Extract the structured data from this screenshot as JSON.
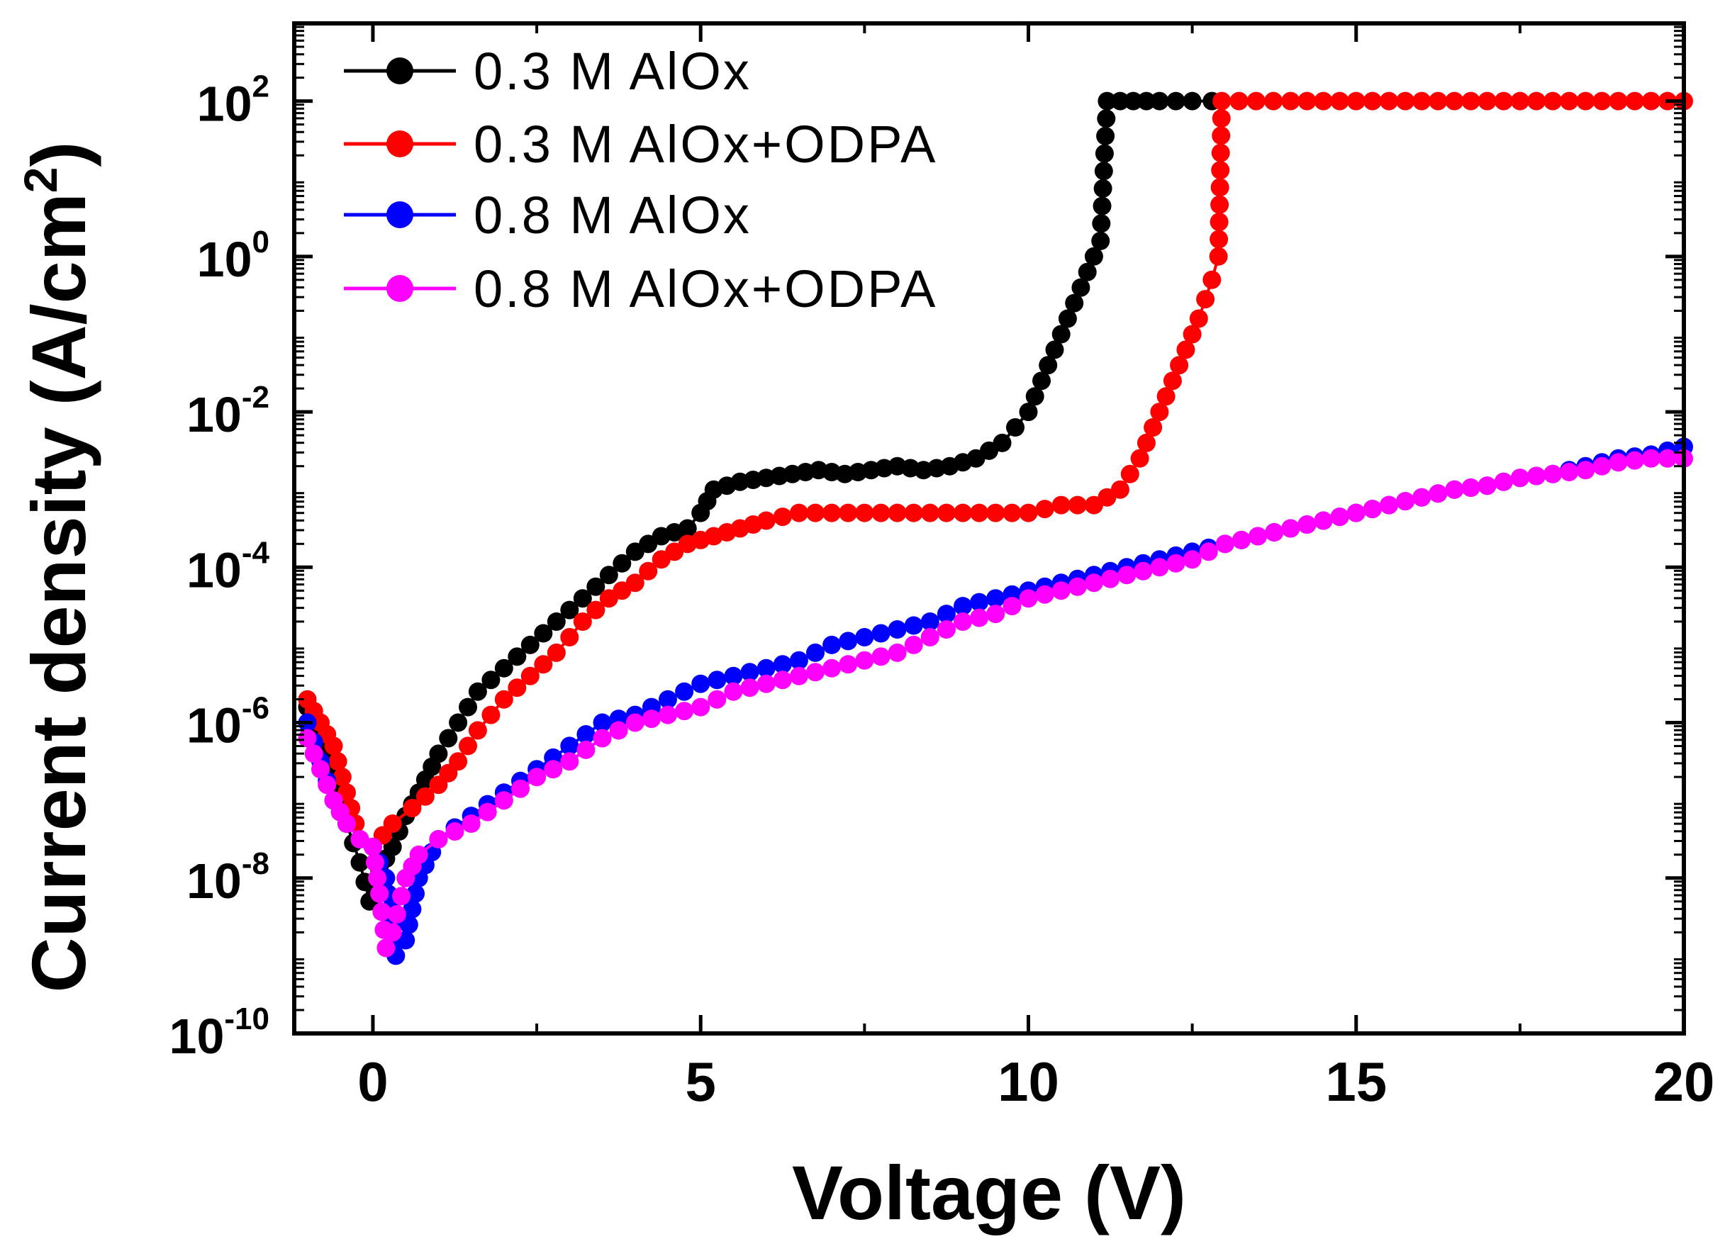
{
  "chart_data": {
    "type": "line",
    "title": "",
    "xlabel": "Voltage (V)",
    "ylabel_main": "Current density (A/cm",
    "ylabel_sup": "2",
    "ylabel_close": ")",
    "xlim": [
      -1.2,
      20
    ],
    "ylim_log10": [
      -10,
      3
    ],
    "y_scale": "log",
    "x_ticks": [
      {
        "value": 0,
        "label": "0"
      },
      {
        "value": 5,
        "label": "5"
      },
      {
        "value": 10,
        "label": "10"
      },
      {
        "value": 15,
        "label": "15"
      },
      {
        "value": 20,
        "label": "20"
      }
    ],
    "y_ticks": [
      {
        "exp": -10,
        "base": "10",
        "sup": "-10"
      },
      {
        "exp": -8,
        "base": "10",
        "sup": "-8"
      },
      {
        "exp": -6,
        "base": "10",
        "sup": "-6"
      },
      {
        "exp": -4,
        "base": "10",
        "sup": "-4"
      },
      {
        "exp": -2,
        "base": "10",
        "sup": "-2"
      },
      {
        "exp": 0,
        "base": "10",
        "sup": "0"
      },
      {
        "exp": 2,
        "base": "10",
        "sup": "2"
      }
    ],
    "legend_position": "top-left",
    "series": [
      {
        "name": "0.3 M AlOx",
        "color": "#000000",
        "points": [
          [
            -1.0,
            -5.8
          ],
          [
            -0.8,
            -6.1
          ],
          [
            -0.6,
            -6.6
          ],
          [
            -0.4,
            -7.3
          ],
          [
            -0.2,
            -7.8
          ],
          [
            -0.05,
            -8.3
          ],
          [
            0.0,
            -8.1
          ],
          [
            0.1,
            -7.9
          ],
          [
            0.3,
            -7.6
          ],
          [
            0.5,
            -7.2
          ],
          [
            0.7,
            -6.9
          ],
          [
            1.0,
            -6.4
          ],
          [
            1.3,
            -6.0
          ],
          [
            1.6,
            -5.6
          ],
          [
            2.0,
            -5.3
          ],
          [
            2.4,
            -5.0
          ],
          [
            2.8,
            -4.7
          ],
          [
            3.2,
            -4.4
          ],
          [
            3.6,
            -4.1
          ],
          [
            4.0,
            -3.8
          ],
          [
            4.4,
            -3.6
          ],
          [
            4.8,
            -3.5
          ],
          [
            5.0,
            -3.3
          ],
          [
            5.2,
            -3.0
          ],
          [
            5.6,
            -2.9
          ],
          [
            6.0,
            -2.85
          ],
          [
            6.4,
            -2.8
          ],
          [
            6.8,
            -2.75
          ],
          [
            7.2,
            -2.8
          ],
          [
            7.6,
            -2.75
          ],
          [
            8.0,
            -2.7
          ],
          [
            8.4,
            -2.75
          ],
          [
            8.8,
            -2.7
          ],
          [
            9.2,
            -2.6
          ],
          [
            9.6,
            -2.4
          ],
          [
            10.0,
            -2.0
          ],
          [
            10.3,
            -1.4
          ],
          [
            10.6,
            -0.8
          ],
          [
            10.9,
            -0.2
          ],
          [
            11.1,
            0.2
          ],
          [
            11.2,
            2.0
          ],
          [
            11.6,
            2.0
          ],
          [
            12.0,
            2.0
          ],
          [
            12.5,
            2.0
          ],
          [
            12.8,
            2.0
          ]
        ]
      },
      {
        "name": "0.3 M AlOx+ODPA",
        "color": "#ff0000",
        "points": [
          [
            -1.0,
            -5.7
          ],
          [
            -0.8,
            -6.0
          ],
          [
            -0.6,
            -6.3
          ],
          [
            -0.4,
            -6.9
          ],
          [
            -0.2,
            -7.5
          ],
          [
            0.0,
            -7.6
          ],
          [
            0.3,
            -7.3
          ],
          [
            0.6,
            -7.1
          ],
          [
            1.0,
            -6.8
          ],
          [
            1.3,
            -6.5
          ],
          [
            1.6,
            -6.1
          ],
          [
            2.0,
            -5.7
          ],
          [
            2.4,
            -5.4
          ],
          [
            2.8,
            -5.1
          ],
          [
            3.2,
            -4.7
          ],
          [
            3.6,
            -4.4
          ],
          [
            4.0,
            -4.2
          ],
          [
            4.4,
            -3.9
          ],
          [
            4.8,
            -3.7
          ],
          [
            5.2,
            -3.6
          ],
          [
            5.6,
            -3.5
          ],
          [
            6.0,
            -3.4
          ],
          [
            6.5,
            -3.3
          ],
          [
            7.0,
            -3.3
          ],
          [
            7.5,
            -3.3
          ],
          [
            8.0,
            -3.3
          ],
          [
            8.5,
            -3.3
          ],
          [
            9.0,
            -3.3
          ],
          [
            9.5,
            -3.3
          ],
          [
            10.0,
            -3.3
          ],
          [
            10.5,
            -3.2
          ],
          [
            11.0,
            -3.2
          ],
          [
            11.4,
            -3.0
          ],
          [
            11.7,
            -2.6
          ],
          [
            12.0,
            -2.0
          ],
          [
            12.3,
            -1.4
          ],
          [
            12.6,
            -0.8
          ],
          [
            12.8,
            -0.3
          ],
          [
            12.9,
            0.0
          ],
          [
            12.95,
            2.0
          ],
          [
            14.0,
            2.0
          ],
          [
            16.0,
            2.0
          ],
          [
            18.0,
            2.0
          ],
          [
            20.0,
            2.0
          ]
        ]
      },
      {
        "name": "0.8 M AlOx",
        "color": "#0000ff",
        "points": [
          [
            -1.0,
            -6.0
          ],
          [
            -0.8,
            -6.5
          ],
          [
            -0.6,
            -7.0
          ],
          [
            -0.4,
            -7.3
          ],
          [
            -0.2,
            -7.5
          ],
          [
            0.0,
            -7.6
          ],
          [
            0.2,
            -8.0
          ],
          [
            0.35,
            -9.0
          ],
          [
            0.5,
            -8.8
          ],
          [
            0.7,
            -8.0
          ],
          [
            1.0,
            -7.5
          ],
          [
            1.5,
            -7.2
          ],
          [
            2.0,
            -6.9
          ],
          [
            2.5,
            -6.6
          ],
          [
            3.0,
            -6.3
          ],
          [
            3.5,
            -6.0
          ],
          [
            4.0,
            -5.9
          ],
          [
            4.5,
            -5.7
          ],
          [
            5.0,
            -5.5
          ],
          [
            5.5,
            -5.4
          ],
          [
            6.0,
            -5.3
          ],
          [
            6.5,
            -5.2
          ],
          [
            7.0,
            -5.0
          ],
          [
            7.5,
            -4.9
          ],
          [
            8.0,
            -4.8
          ],
          [
            8.5,
            -4.7
          ],
          [
            9.0,
            -4.5
          ],
          [
            9.5,
            -4.4
          ],
          [
            10.0,
            -4.3
          ],
          [
            10.5,
            -4.2
          ],
          [
            11.0,
            -4.1
          ],
          [
            11.5,
            -4.0
          ],
          [
            12.0,
            -3.9
          ],
          [
            12.5,
            -3.8
          ],
          [
            13.0,
            -3.7
          ],
          [
            13.5,
            -3.6
          ],
          [
            14.0,
            -3.5
          ],
          [
            14.5,
            -3.4
          ],
          [
            15.0,
            -3.3
          ],
          [
            15.5,
            -3.2
          ],
          [
            16.0,
            -3.1
          ],
          [
            16.5,
            -3.0
          ],
          [
            17.0,
            -2.95
          ],
          [
            17.5,
            -2.85
          ],
          [
            18.0,
            -2.8
          ],
          [
            18.5,
            -2.7
          ],
          [
            19.0,
            -2.6
          ],
          [
            19.5,
            -2.55
          ],
          [
            20.0,
            -2.45
          ]
        ]
      },
      {
        "name": "0.8 M AlOx+ODPA",
        "color": "#ff00ff",
        "points": [
          [
            -1.0,
            -6.2
          ],
          [
            -0.8,
            -6.6
          ],
          [
            -0.6,
            -7.0
          ],
          [
            -0.4,
            -7.3
          ],
          [
            -0.2,
            -7.5
          ],
          [
            0.0,
            -7.6
          ],
          [
            0.1,
            -8.2
          ],
          [
            0.2,
            -8.9
          ],
          [
            0.3,
            -8.7
          ],
          [
            0.5,
            -8.0
          ],
          [
            0.7,
            -7.7
          ],
          [
            1.0,
            -7.5
          ],
          [
            1.5,
            -7.3
          ],
          [
            2.0,
            -7.0
          ],
          [
            2.5,
            -6.7
          ],
          [
            3.0,
            -6.5
          ],
          [
            3.5,
            -6.2
          ],
          [
            4.0,
            -6.0
          ],
          [
            4.5,
            -5.9
          ],
          [
            5.0,
            -5.8
          ],
          [
            5.5,
            -5.6
          ],
          [
            6.0,
            -5.5
          ],
          [
            6.5,
            -5.4
          ],
          [
            7.0,
            -5.3
          ],
          [
            7.5,
            -5.2
          ],
          [
            8.0,
            -5.1
          ],
          [
            8.5,
            -4.9
          ],
          [
            9.0,
            -4.7
          ],
          [
            9.5,
            -4.6
          ],
          [
            10.0,
            -4.4
          ],
          [
            10.5,
            -4.3
          ],
          [
            11.0,
            -4.2
          ],
          [
            11.5,
            -4.1
          ],
          [
            12.0,
            -4.0
          ],
          [
            12.5,
            -3.9
          ],
          [
            13.0,
            -3.7
          ],
          [
            13.5,
            -3.6
          ],
          [
            14.0,
            -3.5
          ],
          [
            14.5,
            -3.4
          ],
          [
            15.0,
            -3.3
          ],
          [
            15.5,
            -3.2
          ],
          [
            16.0,
            -3.1
          ],
          [
            16.5,
            -3.0
          ],
          [
            17.0,
            -2.95
          ],
          [
            17.5,
            -2.85
          ],
          [
            18.0,
            -2.8
          ],
          [
            18.5,
            -2.75
          ],
          [
            19.0,
            -2.65
          ],
          [
            19.5,
            -2.6
          ],
          [
            20.0,
            -2.6
          ]
        ]
      }
    ]
  }
}
